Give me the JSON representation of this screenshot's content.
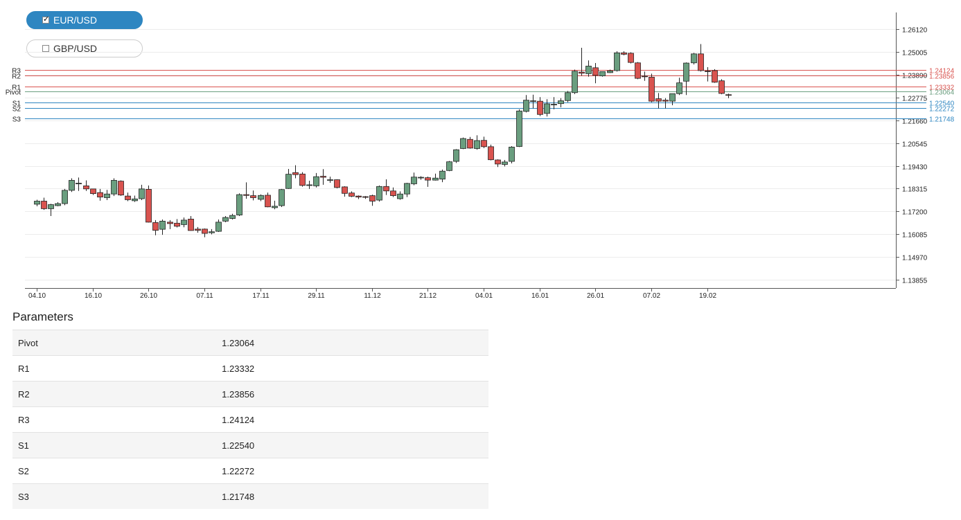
{
  "pairs": [
    {
      "label": "EUR/USD",
      "checked": true
    },
    {
      "label": "GBP/USD",
      "checked": false
    }
  ],
  "colors": {
    "up": "#6a9e7f",
    "down": "#d9534f",
    "resistance": "#d9534f",
    "support": "#2e86c1",
    "pivot": "#6a9e7f"
  },
  "params_title": "Parameters",
  "params": [
    {
      "name": "Pivot",
      "value": "1.23064"
    },
    {
      "name": "R1",
      "value": "1.23332"
    },
    {
      "name": "R2",
      "value": "1.23856"
    },
    {
      "name": "R3",
      "value": "1.24124"
    },
    {
      "name": "S1",
      "value": "1.22540"
    },
    {
      "name": "S2",
      "value": "1.22272"
    },
    {
      "name": "S3",
      "value": "1.21748"
    }
  ],
  "chart_data": {
    "type": "candlestick",
    "ylim": [
      1.1344,
      1.2695
    ],
    "y_ticks": [
      "1.13855",
      "1.14970",
      "1.16085",
      "1.17200",
      "1.18315",
      "1.19430",
      "1.20545",
      "1.21660",
      "1.22775",
      "1.23890",
      "1.25005",
      "1.26120"
    ],
    "x_ticks": [
      "04.10",
      "16.10",
      "26.10",
      "07.11",
      "17.11",
      "29.11",
      "11.12",
      "21.12",
      "04.01",
      "16.01",
      "26.01",
      "07.02",
      "19.02"
    ],
    "x_tick_index": [
      0,
      8,
      16,
      24,
      32,
      40,
      48,
      56,
      64,
      72,
      80,
      88,
      96
    ],
    "levels": [
      {
        "name": "R3",
        "value": 1.24124,
        "label": "1.24124",
        "kind": "resistance"
      },
      {
        "name": "R2",
        "value": 1.23856,
        "label": "1.23856",
        "kind": "resistance"
      },
      {
        "name": "R1",
        "value": 1.23332,
        "label": "1.23332",
        "kind": "resistance"
      },
      {
        "name": "Pivot",
        "value": 1.23064,
        "label": "1.23064",
        "kind": "pivot"
      },
      {
        "name": "S1",
        "value": 1.2254,
        "label": "1.22540",
        "kind": "support"
      },
      {
        "name": "S2",
        "value": 1.22272,
        "label": "1.22272",
        "kind": "support"
      },
      {
        "name": "S3",
        "value": 1.21748,
        "label": "1.21748",
        "kind": "support"
      }
    ],
    "candles": [
      [
        1.1755,
        1.177,
        1.1745,
        1.1777
      ],
      [
        1.177,
        1.1733,
        1.1727,
        1.1787
      ],
      [
        1.1733,
        1.1753,
        1.1697,
        1.1757
      ],
      [
        1.1748,
        1.1758,
        1.1745,
        1.1765
      ],
      [
        1.1758,
        1.1823,
        1.175,
        1.183
      ],
      [
        1.1823,
        1.1872,
        1.1815,
        1.1882
      ],
      [
        1.1858,
        1.1858,
        1.182,
        1.1886
      ],
      [
        1.1845,
        1.183,
        1.182,
        1.1872
      ],
      [
        1.183,
        1.1807,
        1.18,
        1.183
      ],
      [
        1.1812,
        1.179,
        1.1772,
        1.183
      ],
      [
        1.1787,
        1.1805,
        1.1775,
        1.1825
      ],
      [
        1.1805,
        1.1872,
        1.1795,
        1.1882
      ],
      [
        1.1868,
        1.18,
        1.1796,
        1.1872
      ],
      [
        1.1795,
        1.1777,
        1.177,
        1.1812
      ],
      [
        1.1772,
        1.1781,
        1.1766,
        1.1797
      ],
      [
        1.1782,
        1.183,
        1.1775,
        1.185
      ],
      [
        1.1828,
        1.1667,
        1.1665,
        1.1847
      ],
      [
        1.1665,
        1.1627,
        1.1603,
        1.1677
      ],
      [
        1.1632,
        1.1672,
        1.1605,
        1.168
      ],
      [
        1.1667,
        1.166,
        1.1633,
        1.1677
      ],
      [
        1.1662,
        1.1647,
        1.1641,
        1.1682
      ],
      [
        1.1655,
        1.1677,
        1.1642,
        1.169
      ],
      [
        1.1682,
        1.1626,
        1.1625,
        1.1697
      ],
      [
        1.1633,
        1.1627,
        1.1615,
        1.1643
      ],
      [
        1.1633,
        1.1612,
        1.1593,
        1.1636
      ],
      [
        1.1615,
        1.162,
        1.1607,
        1.1633
      ],
      [
        1.1622,
        1.1667,
        1.1619,
        1.168
      ],
      [
        1.1672,
        1.169,
        1.1667,
        1.1697
      ],
      [
        1.1685,
        1.17,
        1.168,
        1.1708
      ],
      [
        1.1702,
        1.1802,
        1.1697,
        1.1808
      ],
      [
        1.1802,
        1.1798,
        1.1782,
        1.1862
      ],
      [
        1.1797,
        1.1787,
        1.1774,
        1.1822
      ],
      [
        1.1779,
        1.1798,
        1.177,
        1.1803
      ],
      [
        1.1799,
        1.1742,
        1.174,
        1.1812
      ],
      [
        1.1738,
        1.1745,
        1.173,
        1.1772
      ],
      [
        1.1748,
        1.1827,
        1.1741,
        1.183
      ],
      [
        1.1832,
        1.1902,
        1.183,
        1.1928
      ],
      [
        1.191,
        1.19,
        1.1882,
        1.1946
      ],
      [
        1.1903,
        1.1847,
        1.1841,
        1.1912
      ],
      [
        1.1848,
        1.185,
        1.183,
        1.187
      ],
      [
        1.1845,
        1.189,
        1.1837,
        1.1908
      ],
      [
        1.1892,
        1.1887,
        1.185,
        1.1927
      ],
      [
        1.1872,
        1.1875,
        1.186,
        1.189
      ],
      [
        1.1875,
        1.1837,
        1.1833,
        1.1877
      ],
      [
        1.184,
        1.1808,
        1.1792,
        1.1843
      ],
      [
        1.181,
        1.1794,
        1.179,
        1.1818
      ],
      [
        1.1795,
        1.179,
        1.178,
        1.1798
      ],
      [
        1.1792,
        1.179,
        1.1781,
        1.1795
      ],
      [
        1.1797,
        1.177,
        1.1747,
        1.1802
      ],
      [
        1.1775,
        1.1842,
        1.1768,
        1.1847
      ],
      [
        1.1842,
        1.182,
        1.18,
        1.1877
      ],
      [
        1.182,
        1.1797,
        1.179,
        1.1837
      ],
      [
        1.1782,
        1.1805,
        1.1777,
        1.1818
      ],
      [
        1.1805,
        1.1857,
        1.179,
        1.186
      ],
      [
        1.1855,
        1.1888,
        1.1848,
        1.191
      ],
      [
        1.1885,
        1.1887,
        1.1875,
        1.1892
      ],
      [
        1.1885,
        1.1873,
        1.184,
        1.189
      ],
      [
        1.1873,
        1.1883,
        1.1871,
        1.1905
      ],
      [
        1.1878,
        1.1917,
        1.1863,
        1.1925
      ],
      [
        1.192,
        1.1963,
        1.1917,
        1.1967
      ],
      [
        1.1965,
        1.2022,
        1.1957,
        1.2025
      ],
      [
        1.2028,
        1.2077,
        1.2025,
        1.2082
      ],
      [
        1.2073,
        1.203,
        1.2027,
        1.2085
      ],
      [
        1.2028,
        1.2067,
        1.2022,
        1.2093
      ],
      [
        1.2068,
        1.2037,
        1.203,
        1.2086
      ],
      [
        1.2037,
        1.1973,
        1.197,
        1.2047
      ],
      [
        1.1972,
        1.1952,
        1.1937,
        1.1975
      ],
      [
        1.195,
        1.1962,
        1.194,
        1.1972
      ],
      [
        1.1965,
        1.2035,
        1.1955,
        1.204
      ],
      [
        1.2038,
        1.2212,
        1.2035,
        1.222
      ],
      [
        1.221,
        1.2265,
        1.2205,
        1.229
      ],
      [
        1.2262,
        1.2262,
        1.2225,
        1.2292
      ],
      [
        1.226,
        1.2195,
        1.2187,
        1.228
      ],
      [
        1.22,
        1.2247,
        1.2185,
        1.227
      ],
      [
        1.2245,
        1.2245,
        1.222,
        1.228
      ],
      [
        1.2248,
        1.2262,
        1.223,
        1.2275
      ],
      [
        1.2263,
        1.2302,
        1.2255,
        1.231
      ],
      [
        1.2302,
        1.2407,
        1.2295,
        1.2415
      ],
      [
        1.2403,
        1.2397,
        1.2385,
        1.2522
      ],
      [
        1.2395,
        1.2432,
        1.238,
        1.246
      ],
      [
        1.2424,
        1.2387,
        1.2348,
        1.2447
      ],
      [
        1.2384,
        1.2405,
        1.238,
        1.2405
      ],
      [
        1.24,
        1.2409,
        1.2398,
        1.2415
      ],
      [
        1.241,
        1.2497,
        1.2405,
        1.2505
      ],
      [
        1.2497,
        1.249,
        1.2485,
        1.2505
      ],
      [
        1.2495,
        1.245,
        1.2445,
        1.25
      ],
      [
        1.2448,
        1.2372,
        1.2368,
        1.2452
      ],
      [
        1.2383,
        1.238,
        1.236,
        1.2405
      ],
      [
        1.2378,
        1.226,
        1.2255,
        1.2395
      ],
      [
        1.2272,
        1.226,
        1.2225,
        1.23
      ],
      [
        1.2265,
        1.226,
        1.2225,
        1.2275
      ],
      [
        1.226,
        1.2297,
        1.224,
        1.2297
      ],
      [
        1.2297,
        1.235,
        1.229,
        1.2375
      ],
      [
        1.2358,
        1.2447,
        1.229,
        1.245
      ],
      [
        1.2448,
        1.2492,
        1.244,
        1.2497
      ],
      [
        1.2492,
        1.241,
        1.2405,
        1.254
      ],
      [
        1.2408,
        1.2407,
        1.2357,
        1.2427
      ],
      [
        1.241,
        1.2353,
        1.235,
        1.2417
      ],
      [
        1.236,
        1.2298,
        1.2294,
        1.2368
      ],
      [
        1.2292,
        1.229,
        1.2275,
        1.2297
      ]
    ]
  }
}
